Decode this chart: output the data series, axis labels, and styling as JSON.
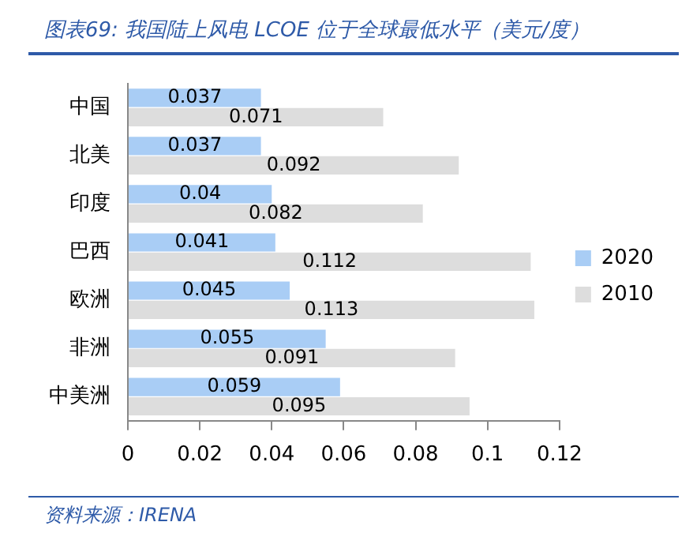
{
  "chart_data": {
    "type": "bar",
    "orientation": "horizontal",
    "title": "图表69: 我国陆上风电 LCOE 位于全球最低水平（美元/度）",
    "categories": [
      "中国",
      "北美",
      "印度",
      "巴西",
      "欧洲",
      "非洲",
      "中美洲"
    ],
    "series": [
      {
        "name": "2020",
        "color": "#a9cdf5",
        "values": [
          0.037,
          0.037,
          0.04,
          0.041,
          0.045,
          0.055,
          0.059
        ]
      },
      {
        "name": "2010",
        "color": "#dddddd",
        "values": [
          0.071,
          0.092,
          0.082,
          0.112,
          0.113,
          0.091,
          0.095
        ]
      }
    ],
    "xlim": [
      0,
      0.12
    ],
    "xticks": [
      0,
      0.02,
      0.04,
      0.06,
      0.08,
      0.1,
      0.12
    ],
    "grid": false,
    "legend": "right",
    "data_labels": true,
    "annotations": [
      "资料来源：IRENA"
    ]
  }
}
